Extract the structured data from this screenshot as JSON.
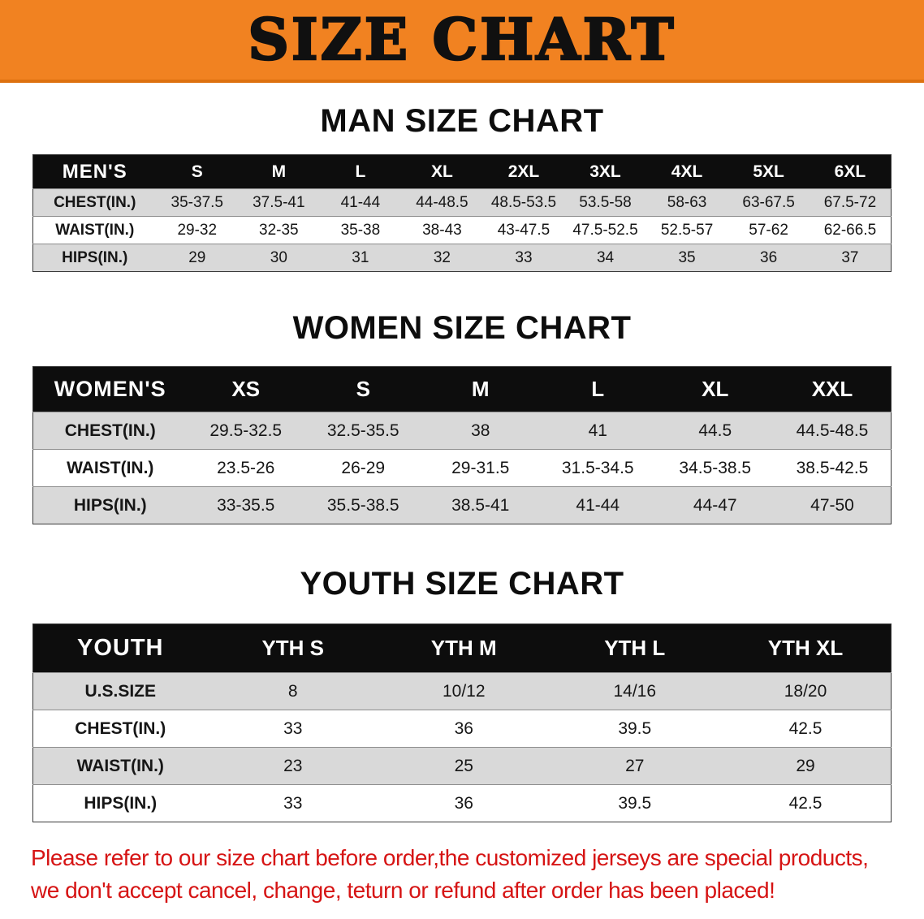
{
  "banner": {
    "title": "SIZE CHART",
    "bg_color": "#f18221"
  },
  "sections": [
    {
      "id": "men",
      "title": "MAN SIZE CHART",
      "header_label": "MEN'S",
      "columns": [
        "S",
        "M",
        "L",
        "XL",
        "2XL",
        "3XL",
        "4XL",
        "5XL",
        "6XL"
      ],
      "rows": [
        {
          "label": "CHEST(IN.)",
          "values": [
            "35-37.5",
            "37.5-41",
            "41-44",
            "44-48.5",
            "48.5-53.5",
            "53.5-58",
            "58-63",
            "63-67.5",
            "67.5-72"
          ]
        },
        {
          "label": "WAIST(IN.)",
          "values": [
            "29-32",
            "32-35",
            "35-38",
            "38-43",
            "43-47.5",
            "47.5-52.5",
            "52.5-57",
            "57-62",
            "62-66.5"
          ]
        },
        {
          "label": "HIPS(IN.)",
          "values": [
            "29",
            "30",
            "31",
            "32",
            "33",
            "34",
            "35",
            "36",
            "37"
          ]
        }
      ]
    },
    {
      "id": "women",
      "title": "WOMEN SIZE CHART",
      "header_label": "WOMEN'S",
      "columns": [
        "XS",
        "S",
        "M",
        "L",
        "XL",
        "XXL"
      ],
      "rows": [
        {
          "label": "CHEST(IN.)",
          "values": [
            "29.5-32.5",
            "32.5-35.5",
            "38",
            "41",
            "44.5",
            "44.5-48.5"
          ]
        },
        {
          "label": "WAIST(IN.)",
          "values": [
            "23.5-26",
            "26-29",
            "29-31.5",
            "31.5-34.5",
            "34.5-38.5",
            "38.5-42.5"
          ]
        },
        {
          "label": "HIPS(IN.)",
          "values": [
            "33-35.5",
            "35.5-38.5",
            "38.5-41",
            "41-44",
            "44-47",
            "47-50"
          ]
        }
      ]
    },
    {
      "id": "youth",
      "title": "YOUTH SIZE CHART",
      "header_label": "YOUTH",
      "columns": [
        "YTH S",
        "YTH M",
        "YTH L",
        "YTH XL"
      ],
      "rows": [
        {
          "label": "U.S.SIZE",
          "values": [
            "8",
            "10/12",
            "14/16",
            "18/20"
          ]
        },
        {
          "label": "CHEST(IN.)",
          "values": [
            "33",
            "36",
            "39.5",
            "42.5"
          ]
        },
        {
          "label": "WAIST(IN.)",
          "values": [
            "23",
            "25",
            "27",
            "29"
          ]
        },
        {
          "label": "HIPS(IN.)",
          "values": [
            "33",
            "36",
            "39.5",
            "42.5"
          ]
        }
      ]
    }
  ],
  "footer": {
    "line1": "Please refer to our size chart before order,the customized jerseys are special products,",
    "line2": "we don't accept cancel, change, teturn or refund after order has been placed!",
    "text_color": "#d61414"
  }
}
